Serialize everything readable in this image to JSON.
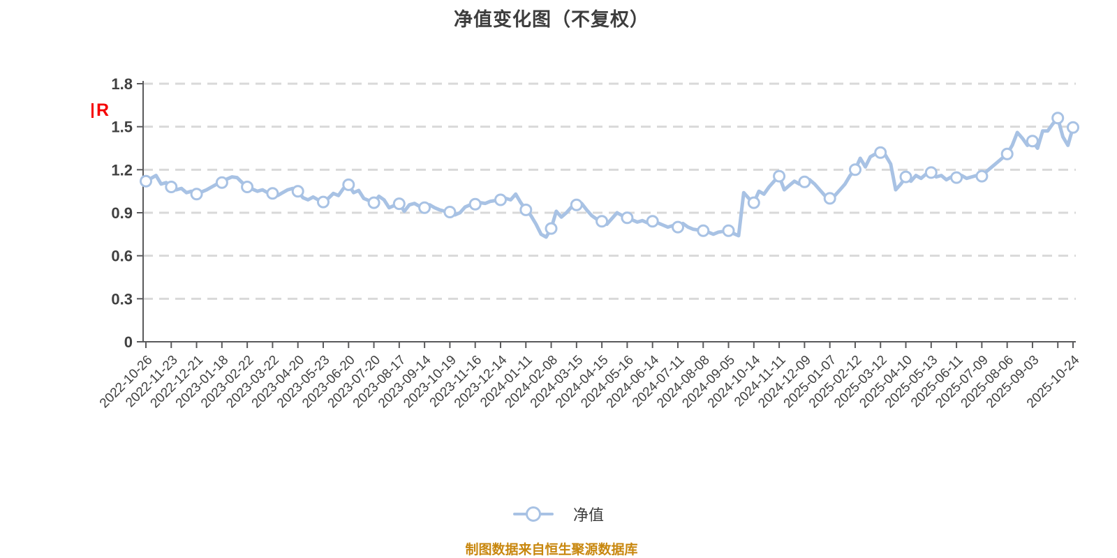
{
  "title": "净值变化图（不复权）",
  "y_axis_unit_label": "R",
  "legend": {
    "label": "净值"
  },
  "footer": "制图数据来自恒生聚源数据库",
  "colors": {
    "line": "#a8c2e4",
    "marker_fill": "#ffffff",
    "grid": "#d9d9d9",
    "axis": "#59595b",
    "tick_text": "#404040",
    "title_text": "#3d3d3d",
    "unit_red": "#f50000",
    "footer_orange": "#c8870e",
    "background": "#ffffff"
  },
  "chart_data": {
    "type": "line",
    "title": "净值变化图（不复权）",
    "xlabel": "",
    "ylabel": "",
    "ylim": [
      0,
      1.8
    ],
    "y_ticks": [
      0,
      0.3,
      0.6,
      0.9,
      1.2,
      1.5,
      1.8
    ],
    "y_tick_labels": [
      "0",
      "0.3",
      "0.6",
      "0.9",
      "1.2",
      "1.5",
      "1.8"
    ],
    "grid": "horizontal-dashed",
    "legend_position": "bottom-center",
    "x_tick_points": [
      0,
      5,
      10,
      15,
      20,
      25,
      30,
      35,
      40,
      45,
      50,
      55,
      60,
      65,
      70,
      75,
      80,
      85,
      90,
      95,
      100,
      105,
      110,
      115,
      120,
      125,
      130,
      135,
      140,
      145,
      150,
      155,
      160,
      165,
      170,
      175,
      180,
      183
    ],
    "x_tick_labels": [
      "2022-10-26",
      "2022-11-23",
      "2022-12-21",
      "2023-01-18",
      "2023-02-22",
      "2023-03-22",
      "2023-04-20",
      "2023-05-23",
      "2023-06-20",
      "2023-07-20",
      "2023-08-17",
      "2023-09-14",
      "2023-10-19",
      "2023-11-16",
      "2023-12-14",
      "2024-01-11",
      "2024-02-08",
      "2024-03-15",
      "2024-04-15",
      "2024-05-16",
      "2024-06-14",
      "2024-07-11",
      "2024-08-08",
      "2024-09-05",
      "2024-10-14",
      "2024-11-11",
      "2024-12-09",
      "2025-01-07",
      "2025-02-12",
      "2025-03-12",
      "2025-04-10",
      "2025-05-13",
      "2025-06-11",
      "2025-07-09",
      "2025-08-06",
      "2025-09-03",
      "",
      "2025-10-24"
    ],
    "marker_points": [
      0,
      5,
      10,
      15,
      20,
      25,
      30,
      35,
      40,
      45,
      50,
      55,
      60,
      65,
      70,
      75,
      80,
      85,
      90,
      95,
      100,
      105,
      110,
      115,
      120,
      125,
      130,
      135,
      140,
      145,
      150,
      155,
      160,
      165,
      170,
      175,
      180,
      183
    ],
    "series": [
      {
        "name": "净值",
        "values": [
          1.12,
          1.14,
          1.16,
          1.1,
          1.11,
          1.08,
          1.06,
          1.07,
          1.04,
          1.05,
          1.03,
          1.045,
          1.06,
          1.08,
          1.1,
          1.11,
          1.135,
          1.15,
          1.145,
          1.11,
          1.08,
          1.065,
          1.05,
          1.06,
          1.04,
          1.035,
          1.02,
          1.04,
          1.06,
          1.07,
          1.05,
          1.005,
          0.99,
          1.01,
          0.99,
          0.975,
          1.0,
          1.035,
          1.02,
          1.07,
          1.095,
          1.04,
          1.055,
          1.0,
          0.985,
          0.97,
          1.015,
          0.99,
          0.935,
          0.95,
          0.963,
          0.91,
          0.955,
          0.965,
          0.945,
          0.935,
          0.955,
          0.935,
          0.92,
          0.91,
          0.905,
          0.885,
          0.9,
          0.94,
          0.955,
          0.96,
          0.97,
          0.965,
          0.98,
          0.985,
          0.99,
          1.0,
          0.99,
          1.03,
          0.97,
          0.92,
          0.88,
          0.82,
          0.75,
          0.73,
          0.79,
          0.91,
          0.87,
          0.9,
          0.94,
          0.955,
          0.965,
          0.92,
          0.88,
          0.855,
          0.84,
          0.82,
          0.86,
          0.9,
          0.88,
          0.865,
          0.85,
          0.835,
          0.845,
          0.83,
          0.84,
          0.83,
          0.815,
          0.8,
          0.81,
          0.8,
          0.825,
          0.8,
          0.785,
          0.78,
          0.775,
          0.765,
          0.75,
          0.765,
          0.77,
          0.775,
          0.755,
          0.74,
          1.04,
          1.0,
          0.97,
          1.05,
          1.03,
          1.08,
          1.12,
          1.155,
          1.06,
          1.09,
          1.12,
          1.1,
          1.115,
          1.13,
          1.1,
          1.06,
          1.02,
          1.0,
          1.02,
          1.06,
          1.1,
          1.16,
          1.2,
          1.28,
          1.22,
          1.29,
          1.31,
          1.32,
          1.3,
          1.24,
          1.06,
          1.1,
          1.15,
          1.12,
          1.16,
          1.14,
          1.17,
          1.18,
          1.15,
          1.16,
          1.13,
          1.15,
          1.145,
          1.16,
          1.14,
          1.15,
          1.16,
          1.155,
          1.19,
          1.22,
          1.25,
          1.28,
          1.31,
          1.37,
          1.46,
          1.42,
          1.37,
          1.4,
          1.35,
          1.47,
          1.47,
          1.52,
          1.56,
          1.43,
          1.37,
          1.495
        ]
      }
    ]
  }
}
